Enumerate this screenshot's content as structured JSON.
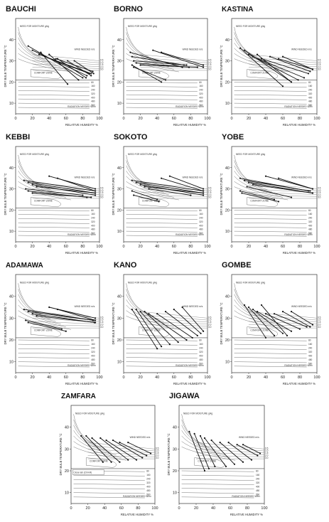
{
  "figure": {
    "axes": {
      "xlabel": "RELATIVE HUMIDITY %",
      "ylabel": "DRY BULB TEMPERATURE °C",
      "x_ticks": [
        "0",
        "20",
        "40",
        "60",
        "80",
        "100"
      ],
      "y_ticks": [
        "10",
        "20",
        "30",
        "40"
      ]
    },
    "labels": {
      "moisture": "NEED FOR MOISTURE g/kg",
      "wind": "WIND NEEDED m/s",
      "radiation": "RADIATION NEEDED W/m²",
      "comfort": "COMFORT ZONE",
      "shading": "SHADING LINE",
      "clothing": "CLOTHING"
    },
    "radiation_values": [
      "80",
      "160",
      "240",
      "320",
      "400",
      "480",
      "560"
    ],
    "wind_values": [
      "0.5",
      "1.0",
      "1.5",
      "2.0",
      "3.0"
    ],
    "zamfara_note": "Close lab (Ch/i-M)"
  },
  "chart_data": [
    {
      "type": "line",
      "title": "BAUCHI",
      "xlim": [
        0,
        100
      ],
      "ylim": [
        5,
        50
      ],
      "series": [
        {
          "x": [
            15,
            80
          ],
          "y": [
            37,
            22
          ]
        },
        {
          "x": [
            20,
            85
          ],
          "y": [
            35,
            23
          ]
        },
        {
          "x": [
            28,
            88
          ],
          "y": [
            33,
            24
          ]
        },
        {
          "x": [
            35,
            90
          ],
          "y": [
            32,
            24
          ]
        },
        {
          "x": [
            48,
            92
          ],
          "y": [
            31,
            25
          ]
        },
        {
          "x": [
            30,
            62
          ],
          "y": [
            34,
            19
          ]
        },
        {
          "x": [
            40,
            75
          ],
          "y": [
            33,
            21
          ]
        },
        {
          "x": [
            50,
            84
          ],
          "y": [
            31,
            22
          ]
        },
        {
          "x": [
            62,
            90
          ],
          "y": [
            30,
            23
          ]
        },
        {
          "x": [
            70,
            93
          ],
          "y": [
            30,
            24
          ]
        }
      ]
    },
    {
      "type": "line",
      "title": "BORNO",
      "xlim": [
        0,
        100
      ],
      "ylim": [
        5,
        50
      ],
      "series": [
        {
          "x": [
            8,
            70
          ],
          "y": [
            34,
            27
          ]
        },
        {
          "x": [
            10,
            72
          ],
          "y": [
            32,
            28
          ]
        },
        {
          "x": [
            12,
            75
          ],
          "y": [
            30,
            28
          ]
        },
        {
          "x": [
            15,
            78
          ],
          "y": [
            29,
            27
          ]
        },
        {
          "x": [
            20,
            88
          ],
          "y": [
            28,
            27
          ]
        },
        {
          "x": [
            35,
            95
          ],
          "y": [
            35,
            27
          ]
        },
        {
          "x": [
            45,
            95
          ],
          "y": [
            34,
            28
          ]
        },
        {
          "x": [
            10,
            45
          ],
          "y": [
            28,
            20
          ]
        },
        {
          "x": [
            12,
            50
          ],
          "y": [
            27,
            21
          ]
        }
      ]
    },
    {
      "type": "line",
      "title": "KASTINA",
      "xlim": [
        0,
        100
      ],
      "ylim": [
        5,
        50
      ],
      "series": [
        {
          "x": [
            10,
            60
          ],
          "y": [
            36,
            18
          ]
        },
        {
          "x": [
            15,
            70
          ],
          "y": [
            35,
            20
          ]
        },
        {
          "x": [
            20,
            78
          ],
          "y": [
            33,
            21
          ]
        },
        {
          "x": [
            25,
            85
          ],
          "y": [
            32,
            22
          ]
        },
        {
          "x": [
            35,
            90
          ],
          "y": [
            31,
            24
          ]
        },
        {
          "x": [
            45,
            92
          ],
          "y": [
            32,
            25
          ]
        },
        {
          "x": [
            55,
            95
          ],
          "y": [
            31,
            26
          ]
        },
        {
          "x": [
            60,
            95
          ],
          "y": [
            32,
            26
          ]
        },
        {
          "x": [
            30,
            70
          ],
          "y": [
            33,
            20
          ]
        }
      ]
    },
    {
      "type": "line",
      "title": "KEBBI",
      "xlim": [
        0,
        100
      ],
      "ylim": [
        5,
        50
      ],
      "series": [
        {
          "x": [
            10,
            95
          ],
          "y": [
            34,
            29
          ]
        },
        {
          "x": [
            15,
            95
          ],
          "y": [
            33,
            28
          ]
        },
        {
          "x": [
            20,
            95
          ],
          "y": [
            32,
            27
          ]
        },
        {
          "x": [
            25,
            95
          ],
          "y": [
            31,
            28
          ]
        },
        {
          "x": [
            12,
            80
          ],
          "y": [
            30,
            27
          ]
        },
        {
          "x": [
            15,
            85
          ],
          "y": [
            29,
            26
          ]
        },
        {
          "x": [
            20,
            90
          ],
          "y": [
            28,
            26
          ]
        },
        {
          "x": [
            40,
            95
          ],
          "y": [
            36,
            30
          ]
        },
        {
          "x": [
            50,
            95
          ],
          "y": [
            35,
            29
          ]
        }
      ]
    },
    {
      "type": "line",
      "title": "SOKOTO",
      "xlim": [
        0,
        100
      ],
      "ylim": [
        5,
        50
      ],
      "series": [
        {
          "x": [
            10,
            95
          ],
          "y": [
            34,
            29
          ]
        },
        {
          "x": [
            15,
            95
          ],
          "y": [
            33,
            28
          ]
        },
        {
          "x": [
            20,
            95
          ],
          "y": [
            32,
            27
          ]
        },
        {
          "x": [
            25,
            95
          ],
          "y": [
            31,
            28
          ]
        },
        {
          "x": [
            10,
            40
          ],
          "y": [
            29,
            25
          ]
        },
        {
          "x": [
            12,
            42
          ],
          "y": [
            27,
            24
          ]
        },
        {
          "x": [
            45,
            95
          ],
          "y": [
            35,
            29
          ]
        },
        {
          "x": [
            55,
            95
          ],
          "y": [
            36,
            30
          ]
        },
        {
          "x": [
            30,
            80
          ],
          "y": [
            30,
            27
          ]
        }
      ]
    },
    {
      "type": "line",
      "title": "YOBE",
      "xlim": [
        0,
        100
      ],
      "ylim": [
        5,
        50
      ],
      "series": [
        {
          "x": [
            10,
            90
          ],
          "y": [
            35,
            29
          ]
        },
        {
          "x": [
            15,
            92
          ],
          "y": [
            34,
            29
          ]
        },
        {
          "x": [
            20,
            95
          ],
          "y": [
            33,
            28
          ]
        },
        {
          "x": [
            25,
            95
          ],
          "y": [
            32,
            28
          ]
        },
        {
          "x": [
            10,
            50
          ],
          "y": [
            29,
            25
          ]
        },
        {
          "x": [
            12,
            55
          ],
          "y": [
            28,
            24
          ]
        },
        {
          "x": [
            40,
            95
          ],
          "y": [
            36,
            30
          ]
        },
        {
          "x": [
            55,
            95
          ],
          "y": [
            35,
            30
          ]
        },
        {
          "x": [
            18,
            70
          ],
          "y": [
            31,
            26
          ]
        }
      ]
    },
    {
      "type": "line",
      "title": "ADAMAWA",
      "xlim": [
        0,
        100
      ],
      "ylim": [
        5,
        50
      ],
      "series": [
        {
          "x": [
            10,
            92
          ],
          "y": [
            34,
            29
          ]
        },
        {
          "x": [
            15,
            93
          ],
          "y": [
            33,
            29
          ]
        },
        {
          "x": [
            20,
            94
          ],
          "y": [
            32,
            28
          ]
        },
        {
          "x": [
            25,
            95
          ],
          "y": [
            31,
            28
          ]
        },
        {
          "x": [
            12,
            55
          ],
          "y": [
            29,
            25
          ]
        },
        {
          "x": [
            15,
            60
          ],
          "y": [
            28,
            24
          ]
        },
        {
          "x": [
            40,
            95
          ],
          "y": [
            35,
            30
          ]
        },
        {
          "x": [
            50,
            95
          ],
          "y": [
            34,
            29
          ]
        }
      ]
    },
    {
      "type": "line",
      "title": "KANO",
      "xlim": [
        0,
        100
      ],
      "ylim": [
        5,
        50
      ],
      "series": [
        {
          "x": [
            10,
            40
          ],
          "y": [
            34,
            16
          ]
        },
        {
          "x": [
            15,
            45
          ],
          "y": [
            34,
            17
          ]
        },
        {
          "x": [
            20,
            55
          ],
          "y": [
            33,
            18
          ]
        },
        {
          "x": [
            25,
            65
          ],
          "y": [
            33,
            19
          ]
        },
        {
          "x": [
            30,
            75
          ],
          "y": [
            32,
            20
          ]
        },
        {
          "x": [
            40,
            82
          ],
          "y": [
            32,
            21
          ]
        },
        {
          "x": [
            50,
            88
          ],
          "y": [
            33,
            22
          ]
        },
        {
          "x": [
            60,
            92
          ],
          "y": [
            34,
            23
          ]
        },
        {
          "x": [
            70,
            95
          ],
          "y": [
            35,
            24
          ]
        }
      ]
    },
    {
      "type": "line",
      "title": "GOMBE",
      "xlim": [
        0,
        100
      ],
      "ylim": [
        5,
        50
      ],
      "series": [
        {
          "x": [
            15,
            40
          ],
          "y": [
            36,
            21
          ]
        },
        {
          "x": [
            20,
            50
          ],
          "y": [
            35,
            22
          ]
        },
        {
          "x": [
            25,
            60
          ],
          "y": [
            34,
            23
          ]
        },
        {
          "x": [
            30,
            70
          ],
          "y": [
            33,
            24
          ]
        },
        {
          "x": [
            40,
            80
          ],
          "y": [
            32,
            25
          ]
        },
        {
          "x": [
            50,
            88
          ],
          "y": [
            32,
            26
          ]
        },
        {
          "x": [
            60,
            92
          ],
          "y": [
            33,
            26
          ]
        },
        {
          "x": [
            70,
            95
          ],
          "y": [
            33,
            27
          ]
        },
        {
          "x": [
            35,
            65
          ],
          "y": [
            36,
            22
          ]
        }
      ]
    },
    {
      "type": "line",
      "title": "ZAMFARA",
      "xlim": [
        0,
        100
      ],
      "ylim": [
        5,
        50
      ],
      "series": [
        {
          "x": [
            12,
            38
          ],
          "y": [
            36,
            24
          ]
        },
        {
          "x": [
            18,
            48
          ],
          "y": [
            36,
            24
          ]
        },
        {
          "x": [
            25,
            58
          ],
          "y": [
            35,
            24
          ]
        },
        {
          "x": [
            35,
            68
          ],
          "y": [
            35,
            25
          ]
        },
        {
          "x": [
            42,
            78
          ],
          "y": [
            34,
            25
          ]
        },
        {
          "x": [
            50,
            85
          ],
          "y": [
            34,
            26
          ]
        },
        {
          "x": [
            58,
            90
          ],
          "y": [
            33,
            27
          ]
        },
        {
          "x": [
            68,
            95
          ],
          "y": [
            33,
            28
          ]
        }
      ]
    },
    {
      "type": "line",
      "title": "JIGAWA",
      "xlim": [
        0,
        100
      ],
      "ylim": [
        5,
        50
      ],
      "series": [
        {
          "x": [
            12,
            30
          ],
          "y": [
            38,
            20
          ]
        },
        {
          "x": [
            18,
            35
          ],
          "y": [
            37,
            21
          ]
        },
        {
          "x": [
            25,
            42
          ],
          "y": [
            36,
            22
          ]
        },
        {
          "x": [
            30,
            55
          ],
          "y": [
            35,
            22
          ]
        },
        {
          "x": [
            38,
            65
          ],
          "y": [
            34,
            23
          ]
        },
        {
          "x": [
            48,
            75
          ],
          "y": [
            33,
            24
          ]
        },
        {
          "x": [
            58,
            85
          ],
          "y": [
            33,
            25
          ]
        },
        {
          "x": [
            68,
            92
          ],
          "y": [
            32,
            27
          ]
        },
        {
          "x": [
            75,
            95
          ],
          "y": [
            32,
            28
          ]
        }
      ]
    }
  ]
}
